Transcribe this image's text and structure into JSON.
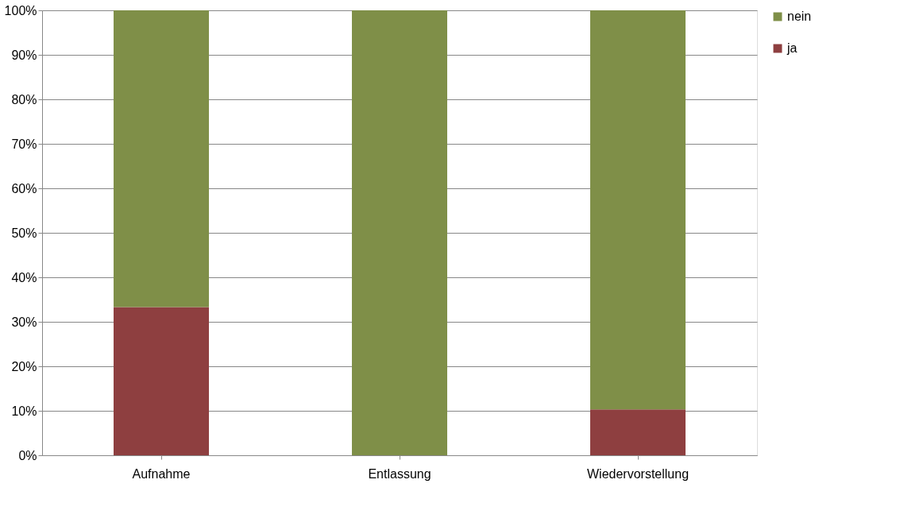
{
  "chart_data": {
    "type": "bar",
    "stacked": true,
    "categories": [
      "Aufnahme",
      "Entlassung",
      "Wiedervorstellung"
    ],
    "series": [
      {
        "name": "ja",
        "color": "#8e3f40",
        "values": [
          33.3,
          0,
          10.3
        ]
      },
      {
        "name": "nein",
        "color": "#7f8f48",
        "values": [
          66.7,
          100,
          89.7
        ]
      }
    ],
    "ylim": [
      0,
      100
    ],
    "yticks": [
      {
        "value": 0,
        "label": "0%"
      },
      {
        "value": 10,
        "label": "10%"
      },
      {
        "value": 20,
        "label": "20%"
      },
      {
        "value": 30,
        "label": "30%"
      },
      {
        "value": 40,
        "label": "40%"
      },
      {
        "value": 50,
        "label": "50%"
      },
      {
        "value": 60,
        "label": "60%"
      },
      {
        "value": 70,
        "label": "70%"
      },
      {
        "value": 80,
        "label": "80%"
      },
      {
        "value": 90,
        "label": "90%"
      },
      {
        "value": 100,
        "label": "100%"
      }
    ],
    "grid": "y",
    "legend": "right"
  }
}
